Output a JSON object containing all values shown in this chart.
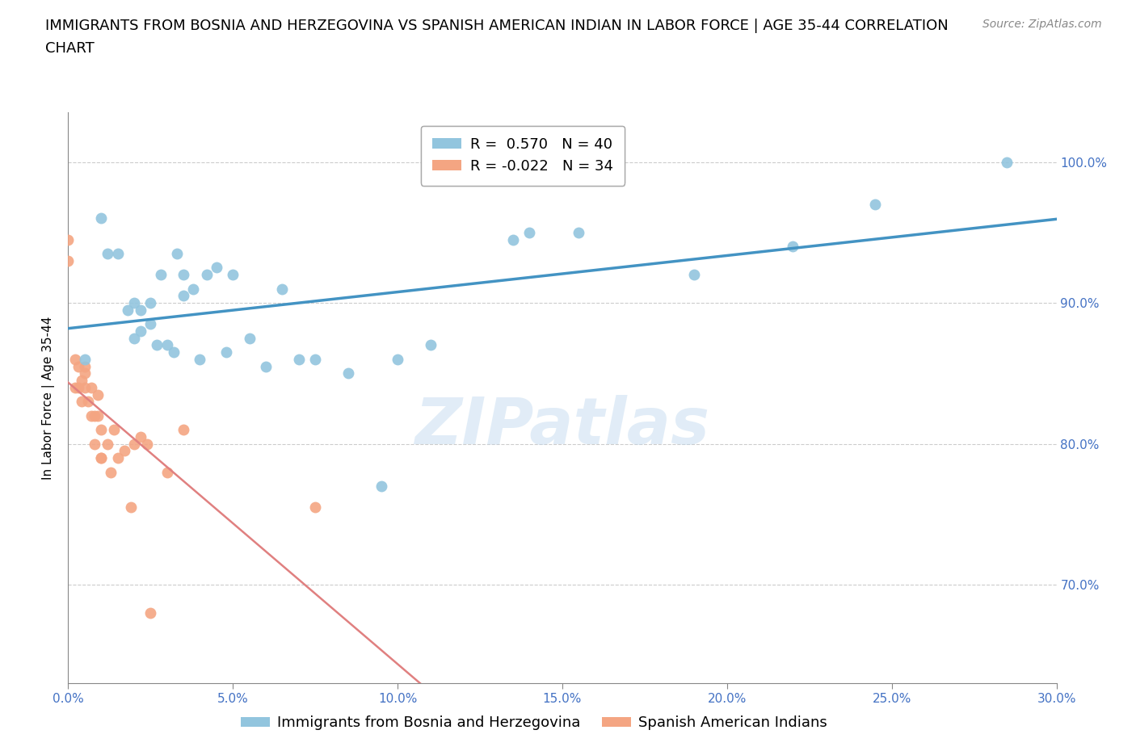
{
  "title_line1": "IMMIGRANTS FROM BOSNIA AND HERZEGOVINA VS SPANISH AMERICAN INDIAN IN LABOR FORCE | AGE 35-44 CORRELATION",
  "title_line2": "CHART",
  "source": "Source: ZipAtlas.com",
  "ylabel": "In Labor Force | Age 35-44",
  "xlim": [
    0.0,
    0.3
  ],
  "ylim": [
    0.63,
    1.035
  ],
  "yticks": [
    0.7,
    0.8,
    0.9,
    1.0
  ],
  "ytick_labels": [
    "70.0%",
    "80.0%",
    "90.0%",
    "100.0%"
  ],
  "xticks": [
    0.0,
    0.05,
    0.1,
    0.15,
    0.2,
    0.25,
    0.3
  ],
  "xtick_labels": [
    "0.0%",
    "5.0%",
    "10.0%",
    "15.0%",
    "20.0%",
    "25.0%",
    "30.0%"
  ],
  "blue_R": 0.57,
  "blue_N": 40,
  "pink_R": -0.022,
  "pink_N": 34,
  "legend_label_blue": "Immigrants from Bosnia and Herzegovina",
  "legend_label_pink": "Spanish American Indians",
  "blue_color": "#92c5de",
  "pink_color": "#f4a582",
  "blue_line_color": "#4393c3",
  "pink_line_color": "#e08080",
  "watermark": "ZIPatlas",
  "blue_x": [
    0.005,
    0.01,
    0.012,
    0.015,
    0.018,
    0.02,
    0.02,
    0.022,
    0.022,
    0.025,
    0.025,
    0.027,
    0.028,
    0.03,
    0.032,
    0.033,
    0.035,
    0.035,
    0.038,
    0.04,
    0.042,
    0.045,
    0.048,
    0.05,
    0.055,
    0.06,
    0.065,
    0.07,
    0.075,
    0.085,
    0.095,
    0.1,
    0.11,
    0.135,
    0.14,
    0.155,
    0.19,
    0.22,
    0.245,
    0.285
  ],
  "blue_y": [
    0.86,
    0.96,
    0.935,
    0.935,
    0.895,
    0.9,
    0.875,
    0.895,
    0.88,
    0.9,
    0.885,
    0.87,
    0.92,
    0.87,
    0.865,
    0.935,
    0.92,
    0.905,
    0.91,
    0.86,
    0.92,
    0.925,
    0.865,
    0.92,
    0.875,
    0.855,
    0.91,
    0.86,
    0.86,
    0.85,
    0.77,
    0.86,
    0.87,
    0.945,
    0.95,
    0.95,
    0.92,
    0.94,
    0.97,
    1.0
  ],
  "pink_x": [
    0.0,
    0.0,
    0.002,
    0.002,
    0.003,
    0.003,
    0.004,
    0.004,
    0.005,
    0.005,
    0.005,
    0.006,
    0.007,
    0.007,
    0.008,
    0.008,
    0.009,
    0.009,
    0.01,
    0.01,
    0.01,
    0.012,
    0.013,
    0.014,
    0.015,
    0.017,
    0.019,
    0.02,
    0.022,
    0.024,
    0.025,
    0.03,
    0.035,
    0.075
  ],
  "pink_y": [
    0.93,
    0.945,
    0.86,
    0.84,
    0.855,
    0.84,
    0.845,
    0.83,
    0.855,
    0.85,
    0.84,
    0.83,
    0.82,
    0.84,
    0.82,
    0.8,
    0.835,
    0.82,
    0.79,
    0.81,
    0.79,
    0.8,
    0.78,
    0.81,
    0.79,
    0.795,
    0.755,
    0.8,
    0.805,
    0.8,
    0.68,
    0.78,
    0.81,
    0.755
  ],
  "grid_color": "#cccccc",
  "background_color": "#ffffff",
  "axis_color": "#4472c4",
  "title_fontsize": 13,
  "label_fontsize": 11,
  "tick_fontsize": 11,
  "legend_fontsize": 13
}
